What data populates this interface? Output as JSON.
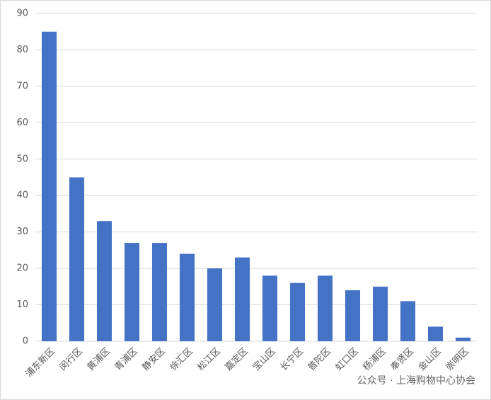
{
  "chart_data": {
    "type": "bar",
    "categories": [
      "浦东新区",
      "闵行区",
      "黄浦区",
      "青浦区",
      "静安区",
      "徐汇区",
      "松江区",
      "嘉定区",
      "宝山区",
      "长宁区",
      "普陀区",
      "虹口区",
      "杨浦区",
      "奉贤区",
      "金山区",
      "崇明区"
    ],
    "values": [
      85,
      45,
      33,
      27,
      27,
      24,
      20,
      23,
      18,
      16,
      18,
      14,
      15,
      11,
      4,
      1
    ],
    "color": "#4472c4",
    "ylim": [
      0,
      90
    ],
    "yticks": [
      0,
      10,
      20,
      30,
      40,
      50,
      60,
      70,
      80,
      90
    ],
    "grid": true
  },
  "watermark": "公众号 · 上海购物中心协会"
}
